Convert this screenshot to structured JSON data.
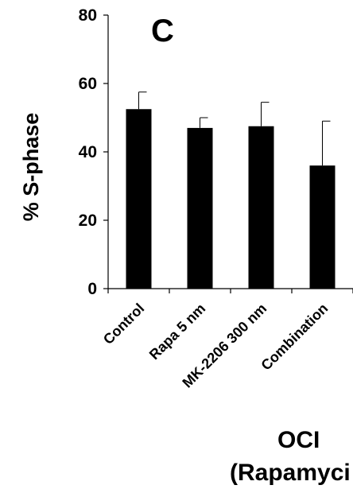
{
  "panel_label": "C",
  "chart_data": {
    "type": "bar",
    "title": "",
    "ylabel": "% S-phase",
    "xlabel_lines": [
      "OCI",
      "(Rapamyci"
    ],
    "categories": [
      "Control",
      "Rapa 5 nm",
      "MK-2206 300 nm",
      "Combination"
    ],
    "series": [
      {
        "values": [
          52.5,
          47,
          47.5,
          36
        ],
        "error": [
          5,
          3,
          7,
          13
        ]
      }
    ],
    "ylim": [
      0,
      80
    ],
    "yticks": [
      "0",
      "20",
      "40",
      "60",
      "80"
    ],
    "grid": false,
    "colors": {
      "bar": "#000000",
      "axis": "#000000"
    }
  }
}
